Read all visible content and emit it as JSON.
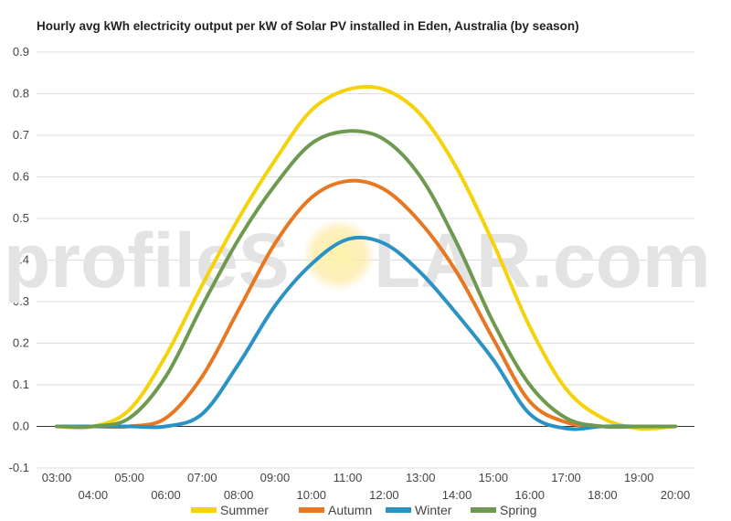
{
  "watermark": {
    "text_left": "profileS",
    "text_right": "LAR.com"
  },
  "chart_data": {
    "type": "line",
    "title": "Hourly avg kWh electricity output per kW of Solar PV installed in Eden, Australia (by season)",
    "xlabel": "",
    "ylabel": "",
    "ylim": [
      -0.1,
      0.9
    ],
    "yticks": [
      "-0.1",
      "0.0",
      "0.1",
      "0.2",
      "0.3",
      "0.4",
      "0.5",
      "0.6",
      "0.7",
      "0.8",
      "0.9"
    ],
    "categories": [
      "03:00",
      "04:00",
      "05:00",
      "06:00",
      "07:00",
      "08:00",
      "09:00",
      "10:00",
      "11:00",
      "12:00",
      "13:00",
      "14:00",
      "15:00",
      "16:00",
      "17:00",
      "18:00",
      "19:00",
      "20:00"
    ],
    "grid": true,
    "legend_position": "bottom",
    "series": [
      {
        "name": "Summer",
        "color": "#F5D20A",
        "values": [
          0.0,
          0.0,
          0.04,
          0.17,
          0.34,
          0.5,
          0.64,
          0.76,
          0.81,
          0.81,
          0.75,
          0.62,
          0.44,
          0.24,
          0.09,
          0.02,
          -0.005,
          0.0
        ]
      },
      {
        "name": "Autumn",
        "color": "#E87722",
        "values": [
          0.0,
          0.0,
          0.0,
          0.02,
          0.12,
          0.28,
          0.44,
          0.55,
          0.59,
          0.57,
          0.49,
          0.37,
          0.21,
          0.06,
          0.01,
          0.0,
          0.0,
          0.0
        ]
      },
      {
        "name": "Winter",
        "color": "#2A93C4",
        "values": [
          0.0,
          0.0,
          0.0,
          0.0,
          0.03,
          0.15,
          0.29,
          0.39,
          0.45,
          0.44,
          0.37,
          0.27,
          0.16,
          0.03,
          -0.005,
          0.0,
          0.0,
          0.0
        ]
      },
      {
        "name": "Spring",
        "color": "#6E9A50",
        "values": [
          0.0,
          0.0,
          0.02,
          0.12,
          0.29,
          0.45,
          0.58,
          0.68,
          0.71,
          0.69,
          0.6,
          0.44,
          0.25,
          0.1,
          0.02,
          0.0,
          0.0,
          0.0
        ]
      }
    ]
  }
}
